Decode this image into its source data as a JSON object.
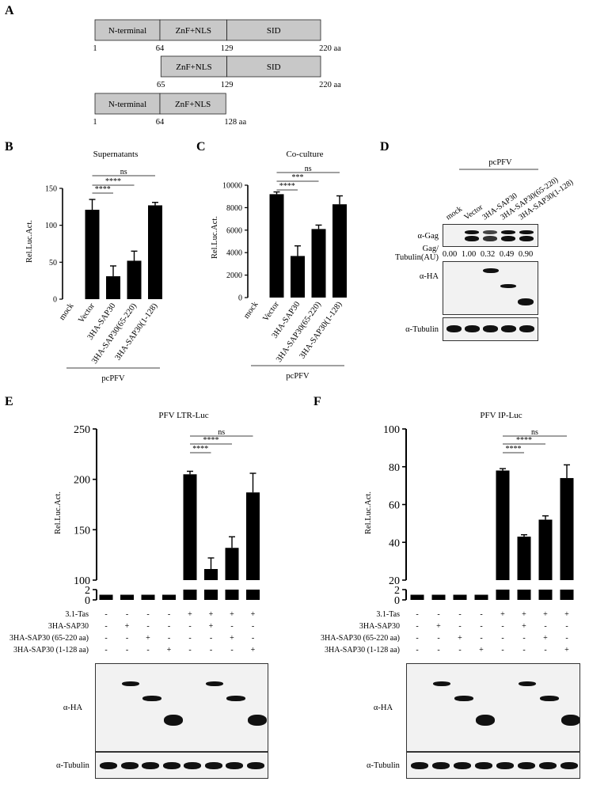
{
  "panels": {
    "A": "A",
    "B": "B",
    "C": "C",
    "D": "D",
    "E": "E",
    "F": "F"
  },
  "panelA": {
    "constructs": [
      {
        "segments": [
          {
            "label": "N-terminal",
            "start": 1,
            "end": 64
          },
          {
            "label": "ZnF+NLS",
            "start": 64,
            "end": 129
          },
          {
            "label": "SID",
            "start": 129,
            "end": 220
          }
        ],
        "ticks": [
          "1",
          "64",
          "129",
          "220 aa"
        ]
      },
      {
        "segments": [
          {
            "label": "ZnF+NLS",
            "start": 65,
            "end": 129
          },
          {
            "label": "SID",
            "start": 129,
            "end": 220
          }
        ],
        "ticks": [
          "65",
          "129",
          "220 aa"
        ]
      },
      {
        "segments": [
          {
            "label": "N-terminal",
            "start": 1,
            "end": 64
          },
          {
            "label": "ZnF+NLS",
            "start": 64,
            "end": 128
          }
        ],
        "ticks": [
          "1",
          "64",
          "128 aa"
        ]
      }
    ]
  },
  "panelD": {
    "group_label": "pcPFV",
    "lanes": [
      "mock",
      "Vector",
      "3HA-SAP30",
      "3HA-SAP30(65-220)",
      "3HA-SAP30(1-128)"
    ],
    "blots": [
      "α-Gag",
      "α-HA",
      "α-Tubulin"
    ],
    "ratio_label_1": "Gag/",
    "ratio_label_2": "Tubulin(AU)",
    "ratios": [
      "0.00",
      "1.00",
      "0.32",
      "0.49",
      "0.90"
    ]
  },
  "panelEF_rows": {
    "labels": [
      "3.1-Tas",
      "3HA-SAP30",
      "3HA-SAP30 (65-220 aa)",
      "3HA-SAP30 (1-128 aa)"
    ],
    "signs": [
      [
        "-",
        "-",
        "-",
        "-",
        "+",
        "+",
        "+",
        "+"
      ],
      [
        "-",
        "+",
        "-",
        "-",
        "-",
        "+",
        "-",
        "-"
      ],
      [
        "-",
        "-",
        "+",
        "-",
        "-",
        "-",
        "+",
        "-"
      ],
      [
        "-",
        "-",
        "-",
        "+",
        "-",
        "-",
        "-",
        "+"
      ]
    ],
    "blots": [
      "α-HA",
      "α-Tubulin"
    ]
  },
  "chart_data": [
    {
      "panel": "B",
      "type": "bar",
      "title": "Supernatants",
      "ylabel": "Rel.Luc.Act.",
      "categories": [
        "mock",
        "Vector",
        "3HA-SAP30",
        "3HA-SAP30(65-220)",
        "3HA-SAP30(1-128)"
      ],
      "values": [
        0,
        121,
        31,
        52,
        127
      ],
      "errors": [
        0,
        14,
        14,
        13,
        4
      ],
      "ylim": [
        0,
        150
      ],
      "yticks": [
        "0",
        "50",
        "100",
        "150"
      ],
      "group_label": "pcPFV",
      "significance": [
        "****",
        "****",
        "ns"
      ]
    },
    {
      "panel": "C",
      "type": "bar",
      "title": "Co-culture",
      "ylabel": "Rel.Luc.Act.",
      "categories": [
        "mock",
        "Vector",
        "3HA-SAP30",
        "3HA-SAP30(65-220)",
        "3HA-SAP30(1-128)"
      ],
      "values": [
        0,
        9200,
        3700,
        6100,
        8300
      ],
      "errors": [
        0,
        200,
        900,
        350,
        750
      ],
      "ylim": [
        0,
        10000
      ],
      "yticks": [
        "0",
        "2000",
        "4000",
        "6000",
        "8000",
        "10000"
      ],
      "group_label": "pcPFV",
      "significance": [
        "****",
        "***",
        "ns"
      ]
    },
    {
      "panel": "E",
      "type": "bar",
      "title": "PFV LTR-Luc",
      "ylabel": "Rel.Luc.Act.",
      "values": [
        1,
        1,
        1,
        1,
        205,
        111,
        132,
        187
      ],
      "errors": [
        0,
        0,
        0,
        0,
        3,
        11,
        11,
        19
      ],
      "ylim_lower": [
        0,
        2
      ],
      "ylim_upper": [
        100,
        250
      ],
      "yticks_lower": [
        "0",
        "2"
      ],
      "yticks_upper": [
        "100",
        "150",
        "200",
        "250"
      ],
      "significance": [
        "****",
        "****",
        "ns"
      ]
    },
    {
      "panel": "F",
      "type": "bar",
      "title": "PFV IP-Luc",
      "ylabel": "Rel.Luc.Act.",
      "values": [
        1,
        1,
        1,
        1,
        78,
        43,
        52,
        74
      ],
      "errors": [
        0,
        0,
        0,
        0,
        1,
        1,
        2,
        7
      ],
      "ylim_lower": [
        0,
        2
      ],
      "ylim_upper": [
        20,
        100
      ],
      "yticks_lower": [
        "0",
        "2"
      ],
      "yticks_upper": [
        "20",
        "40",
        "60",
        "80",
        "100"
      ],
      "significance": [
        "****",
        "****",
        "ns"
      ]
    }
  ]
}
